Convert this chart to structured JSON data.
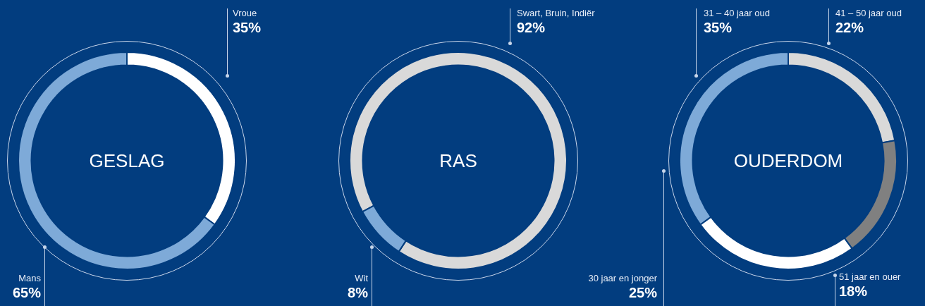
{
  "chart_data": [
    {
      "type": "donut",
      "title": "GESLAG",
      "categories": [
        "Vroue",
        "Mans"
      ],
      "values": [
        35,
        65
      ],
      "value_labels": [
        "35%",
        "65%"
      ],
      "colors": [
        "#ffffff",
        "#7eaad8"
      ],
      "legend": false
    },
    {
      "type": "donut",
      "title": "RAS",
      "categories": [
        "Swart, Bruin, Indiër",
        "Wit"
      ],
      "values": [
        92,
        8
      ],
      "value_labels": [
        "92%",
        "8%"
      ],
      "colors": [
        "#d9d9d9",
        "#7eaad8"
      ],
      "legend": false
    },
    {
      "type": "donut",
      "title": "OUDERDOM",
      "categories": [
        "41 – 50 jaar oud",
        "51 jaar en ouer",
        "30 jaar en jonger",
        "31 – 40 jaar oud"
      ],
      "values": [
        22,
        18,
        25,
        35
      ],
      "value_labels": [
        "22%",
        "18%",
        "25%",
        "35%"
      ],
      "colors": [
        "#d9d9d9",
        "#808080",
        "#ffffff",
        "#7eaad8"
      ],
      "legend": false
    }
  ]
}
